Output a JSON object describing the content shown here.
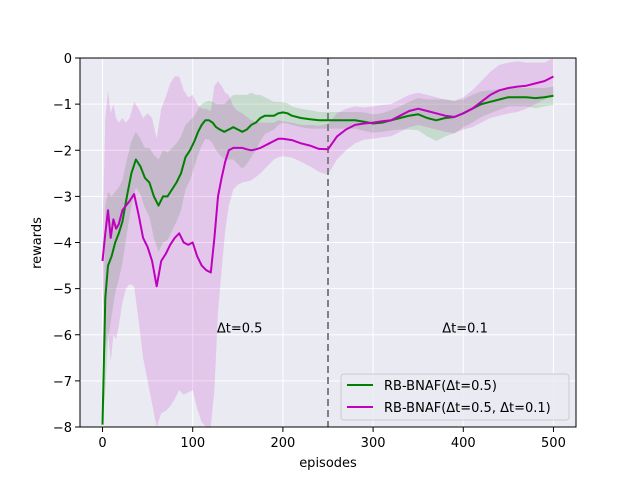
{
  "chart_data": {
    "type": "line",
    "xlabel": "episodes",
    "ylabel": "rewards",
    "xlim": [
      -25,
      525
    ],
    "ylim": [
      -8,
      0
    ],
    "xticks": [
      0,
      100,
      200,
      300,
      400,
      500
    ],
    "yticks": [
      -8,
      -7,
      -6,
      -5,
      -4,
      -3,
      -2,
      -1,
      0
    ],
    "grid": true,
    "legend_position": "lower-right",
    "vline": {
      "x": 250,
      "style": "dashed",
      "color": "#808080"
    },
    "annotations": [
      {
        "text": "Δt=0.5",
        "x": 152,
        "y": -5.95
      },
      {
        "text": "Δt=0.1",
        "x": 402,
        "y": -5.95
      }
    ],
    "series": [
      {
        "name": "RB-BNAF(Δt=0.5)",
        "color": "#008000",
        "x": [
          0,
          3,
          6,
          10,
          14,
          18,
          22,
          27,
          32,
          37,
          42,
          47,
          52,
          57,
          62,
          67,
          72,
          77,
          82,
          87,
          92,
          97,
          102,
          106,
          110,
          114,
          118,
          122,
          126,
          130,
          135,
          140,
          145,
          150,
          155,
          160,
          165,
          170,
          175,
          180,
          185,
          190,
          195,
          200,
          205,
          210,
          220,
          230,
          240,
          250,
          260,
          270,
          280,
          290,
          300,
          310,
          320,
          330,
          340,
          350,
          360,
          370,
          380,
          390,
          400,
          410,
          420,
          430,
          440,
          450,
          460,
          470,
          480,
          490,
          500
        ],
        "y": [
          -7.95,
          -5.2,
          -4.5,
          -4.3,
          -4.0,
          -3.8,
          -3.55,
          -3.0,
          -2.5,
          -2.2,
          -2.35,
          -2.6,
          -2.7,
          -3.0,
          -3.2,
          -3.0,
          -3.0,
          -2.85,
          -2.7,
          -2.5,
          -2.15,
          -2.0,
          -1.8,
          -1.6,
          -1.45,
          -1.35,
          -1.35,
          -1.4,
          -1.5,
          -1.55,
          -1.6,
          -1.55,
          -1.5,
          -1.55,
          -1.6,
          -1.55,
          -1.45,
          -1.4,
          -1.3,
          -1.25,
          -1.25,
          -1.25,
          -1.2,
          -1.18,
          -1.2,
          -1.25,
          -1.3,
          -1.33,
          -1.35,
          -1.35,
          -1.35,
          -1.35,
          -1.35,
          -1.38,
          -1.42,
          -1.4,
          -1.35,
          -1.3,
          -1.25,
          -1.22,
          -1.3,
          -1.35,
          -1.3,
          -1.28,
          -1.2,
          -1.1,
          -1.0,
          -0.95,
          -0.9,
          -0.85,
          -0.85,
          -0.85,
          -0.87,
          -0.85,
          -0.82
        ],
        "band_width": [
          0.35,
          2.0,
          1.6,
          1.3,
          1.1,
          1.0,
          0.9,
          0.8,
          0.7,
          0.6,
          0.6,
          0.65,
          0.75,
          0.9,
          1.0,
          1.0,
          0.95,
          0.9,
          0.85,
          0.8,
          0.7,
          0.65,
          0.55,
          0.5,
          0.45,
          0.4,
          0.42,
          0.45,
          0.5,
          0.55,
          0.6,
          0.65,
          0.7,
          0.75,
          0.8,
          0.75,
          0.7,
          0.6,
          0.5,
          0.4,
          0.35,
          0.3,
          0.25,
          0.22,
          0.22,
          0.2,
          0.2,
          0.2,
          0.18,
          0.18,
          0.18,
          0.18,
          0.18,
          0.2,
          0.2,
          0.2,
          0.22,
          0.25,
          0.3,
          0.35,
          0.4,
          0.45,
          0.4,
          0.35,
          0.3,
          0.3,
          0.28,
          0.25,
          0.22,
          0.2,
          0.2,
          0.2,
          0.22,
          0.2,
          0.2
        ]
      },
      {
        "name": "RB-BNAF(Δt=0.5, Δt=0.1)",
        "color": "#bf00bf",
        "x": [
          0,
          3,
          6,
          9,
          12,
          15,
          18,
          22,
          26,
          30,
          35,
          40,
          45,
          50,
          55,
          60,
          65,
          70,
          75,
          80,
          85,
          90,
          95,
          100,
          105,
          110,
          115,
          120,
          124,
          128,
          132,
          136,
          140,
          145,
          150,
          155,
          160,
          165,
          170,
          175,
          180,
          185,
          190,
          195,
          200,
          210,
          220,
          230,
          240,
          250,
          260,
          270,
          280,
          290,
          300,
          310,
          320,
          330,
          340,
          350,
          360,
          370,
          380,
          390,
          400,
          410,
          420,
          430,
          440,
          450,
          460,
          470,
          480,
          490,
          500
        ],
        "y": [
          -4.4,
          -3.8,
          -3.3,
          -3.9,
          -3.5,
          -3.7,
          -3.6,
          -3.3,
          -3.2,
          -3.1,
          -2.95,
          -3.4,
          -3.9,
          -4.1,
          -4.4,
          -4.95,
          -4.4,
          -4.25,
          -4.05,
          -3.9,
          -3.8,
          -4.0,
          -4.05,
          -4.0,
          -4.3,
          -4.5,
          -4.6,
          -4.65,
          -3.9,
          -3.0,
          -2.6,
          -2.25,
          -2.0,
          -1.95,
          -1.95,
          -1.95,
          -1.98,
          -2.0,
          -1.98,
          -1.95,
          -1.9,
          -1.85,
          -1.8,
          -1.75,
          -1.75,
          -1.78,
          -1.85,
          -1.9,
          -1.97,
          -1.98,
          -1.7,
          -1.55,
          -1.45,
          -1.42,
          -1.4,
          -1.37,
          -1.35,
          -1.25,
          -1.15,
          -1.1,
          -1.15,
          -1.2,
          -1.25,
          -1.28,
          -1.2,
          -1.1,
          -0.95,
          -0.8,
          -0.7,
          -0.65,
          -0.62,
          -0.6,
          -0.55,
          -0.5,
          -0.4
        ],
        "band_width": [
          0.5,
          2.5,
          2.6,
          2.7,
          2.5,
          2.4,
          2.2,
          2.0,
          1.8,
          1.8,
          2.0,
          2.3,
          2.6,
          2.9,
          3.1,
          3.2,
          3.3,
          3.4,
          3.5,
          3.5,
          3.4,
          3.3,
          3.2,
          3.2,
          3.3,
          3.4,
          3.5,
          3.5,
          3.3,
          2.5,
          2.0,
          1.5,
          1.2,
          0.9,
          0.8,
          0.75,
          0.7,
          0.65,
          0.6,
          0.55,
          0.5,
          0.45,
          0.4,
          0.4,
          0.38,
          0.38,
          0.4,
          0.45,
          0.5,
          0.55,
          0.5,
          0.45,
          0.4,
          0.35,
          0.35,
          0.35,
          0.35,
          0.35,
          0.35,
          0.35,
          0.35,
          0.35,
          0.35,
          0.35,
          0.35,
          0.4,
          0.45,
          0.5,
          0.55,
          0.55,
          0.55,
          0.5,
          0.45,
          0.4,
          0.4
        ]
      }
    ]
  }
}
